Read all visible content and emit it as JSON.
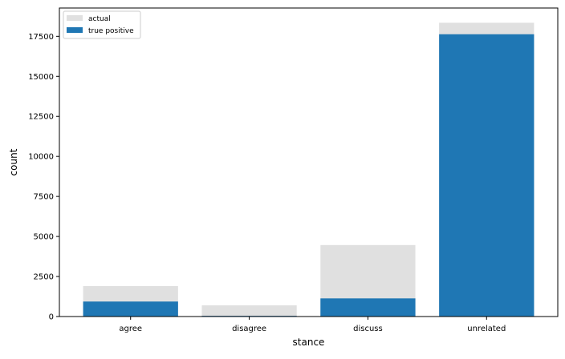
{
  "chart_data": {
    "type": "bar",
    "title": "",
    "xlabel": "stance",
    "ylabel": "count",
    "categories": [
      "agree",
      "disagree",
      "discuss",
      "unrelated"
    ],
    "series": [
      {
        "name": "actual",
        "values": [
          1903,
          697,
          4464,
          18349
        ],
        "color": "#e0e0e0"
      },
      {
        "name": "true positive",
        "values": [
          936,
          42,
          1134,
          17630
        ],
        "color": "#1f77b4"
      }
    ],
    "overlay": true,
    "ylim": [
      0,
      19268
    ],
    "yticks": [
      0,
      2500,
      5000,
      7500,
      10000,
      12500,
      15000,
      17500
    ],
    "ytick_labels": [
      "0",
      "2500",
      "5000",
      "7500",
      "10000",
      "12500",
      "15000",
      "17500"
    ],
    "grid": false,
    "legend": {
      "position": "top-left",
      "entries": [
        "actual",
        "true positive"
      ]
    }
  }
}
